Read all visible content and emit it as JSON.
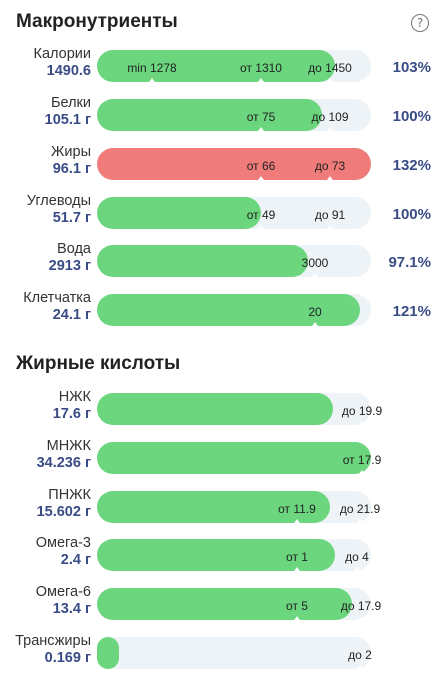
{
  "sections": {
    "macro_title": "Макронутриенты",
    "fatty_title": "Жирные кислоты",
    "help_glyph": "?"
  },
  "colors": {
    "green": "#6bd67e",
    "red": "#ef7c7a",
    "track": "#edf3f6",
    "value": "#3a4c86"
  },
  "macros": [
    {
      "name": "Калории",
      "value": "1490.6",
      "fill_fraction": 0.87,
      "color": "green",
      "percent": "103%",
      "markers": [
        {
          "label": "min 1278"
        },
        {
          "label": "от 1310"
        },
        {
          "label": "до 1450"
        }
      ]
    },
    {
      "name": "Белки",
      "value": "105.1 г",
      "fill_fraction": 0.82,
      "color": "green",
      "percent": "100%",
      "markers": [
        {
          "label": "от 75"
        },
        {
          "label": "до 109"
        }
      ]
    },
    {
      "name": "Жиры",
      "value": "96.1 г",
      "fill_fraction": 1.0,
      "color": "red",
      "percent": "132%",
      "markers": [
        {
          "label": "от 66"
        },
        {
          "label": "до 73"
        }
      ]
    },
    {
      "name": "Углеводы",
      "value": "51.7 г",
      "fill_fraction": 0.6,
      "color": "green",
      "percent": "100%",
      "markers": [
        {
          "label": "от 49"
        },
        {
          "label": "до 91"
        }
      ]
    },
    {
      "name": "Вода",
      "value": "2913 г",
      "fill_fraction": 0.77,
      "color": "green",
      "percent": "97.1%",
      "markers": [
        {
          "label": "3000"
        }
      ]
    },
    {
      "name": "Клетчатка",
      "value": "24.1 г",
      "fill_fraction": 0.96,
      "color": "green",
      "percent": "121%",
      "markers": [
        {
          "label": "20"
        }
      ]
    }
  ],
  "fatty": [
    {
      "name": "НЖК",
      "value": "17.6 г",
      "fill_fraction": 0.86,
      "color": "green",
      "percent": "",
      "markers": [
        {
          "label": "до 19.9"
        }
      ]
    },
    {
      "name": "МНЖК",
      "value": "34.236 г",
      "fill_fraction": 1.0,
      "color": "green",
      "percent": "",
      "markers": [
        {
          "label": "от 17.9"
        }
      ]
    },
    {
      "name": "ПНЖК",
      "value": "15.602 г",
      "fill_fraction": 0.85,
      "color": "green",
      "percent": "",
      "markers": [
        {
          "label": "от 11.9"
        },
        {
          "label": "до 21.9"
        }
      ]
    },
    {
      "name": "Омега-3",
      "value": "2.4 г",
      "fill_fraction": 0.87,
      "color": "green",
      "percent": "",
      "markers": [
        {
          "label": "от 1"
        },
        {
          "label": "до 4"
        }
      ]
    },
    {
      "name": "Омега-6",
      "value": "13.4 г",
      "fill_fraction": 0.93,
      "color": "green",
      "percent": "",
      "markers": [
        {
          "label": "от 5"
        },
        {
          "label": "до 17.9"
        }
      ]
    },
    {
      "name": "Трансжиры",
      "value": "0.169 г",
      "fill_fraction": 0.08,
      "color": "green",
      "percent": "",
      "markers": [
        {
          "label": "до 2"
        }
      ]
    }
  ]
}
